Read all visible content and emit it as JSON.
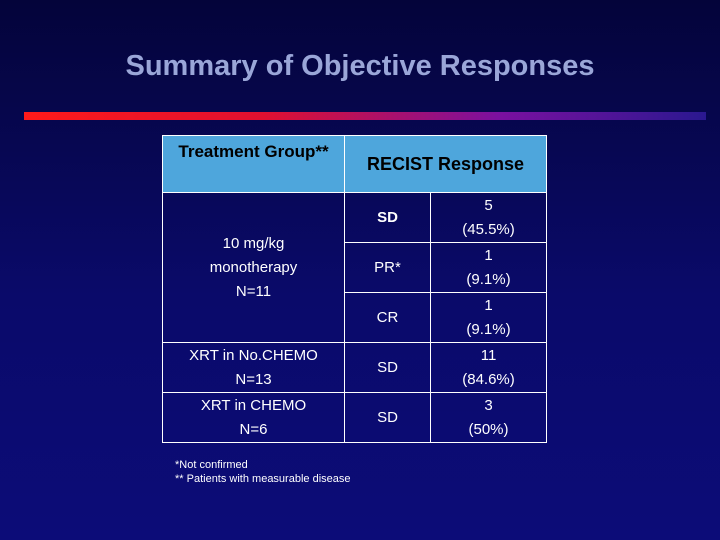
{
  "title": "Summary of Objective Responses",
  "table": {
    "header": {
      "group": "Treatment Group**",
      "response": "RECIST Response"
    },
    "rows": [
      {
        "group_line1": "10 mg/kg",
        "group_line2": "monotherapy",
        "group_line3": "N=11",
        "responses": [
          {
            "label": "SD",
            "count": "5",
            "pct": "(45.5%)"
          },
          {
            "label": "PR*",
            "count": "1",
            "pct": "(9.1%)"
          },
          {
            "label": "CR",
            "count": "1",
            "pct": "(9.1%)"
          }
        ]
      },
      {
        "group_line1": "XRT in No.CHEMO",
        "group_line2": "N=13",
        "responses": [
          {
            "label": "SD",
            "count": "11",
            "pct": "(84.6%)"
          }
        ]
      },
      {
        "group_line1": "XRT in CHEMO",
        "group_line2": "N=6",
        "responses": [
          {
            "label": "SD",
            "count": "3",
            "pct": "(50%)"
          }
        ]
      }
    ]
  },
  "footnotes": [
    "*Not confirmed",
    "** Patients with measurable disease"
  ]
}
